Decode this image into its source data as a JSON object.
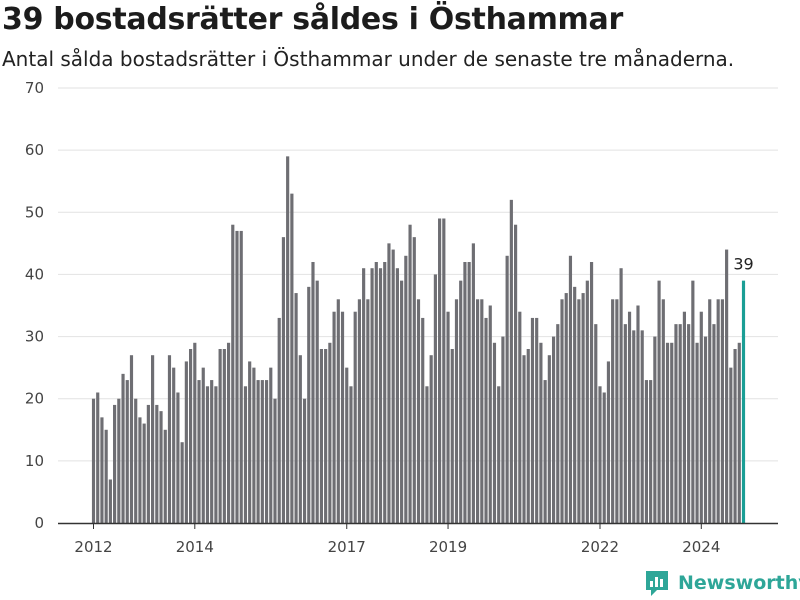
{
  "header": {
    "title": "39 bostadsrätter såldes i Östhammar",
    "subtitle": "Antal sålda bostadsrätter i Östhammar under de senaste tre månaderna."
  },
  "brand": {
    "name": "Newsworthy",
    "icon": "newsworthy-logo-icon",
    "color": "#2ea698"
  },
  "chart_data": {
    "type": "bar",
    "title": "39 bostadsrätter såldes i Östhammar",
    "subtitle": "Antal sålda bostadsrätter i Östhammar under de senaste tre månaderna.",
    "xlabel": "",
    "ylabel": "",
    "ylim": [
      0,
      70
    ],
    "yticks": [
      0,
      10,
      20,
      30,
      40,
      50,
      60,
      70
    ],
    "xticks": [
      "2012",
      "2014",
      "2017",
      "2019",
      "2022",
      "2024"
    ],
    "grid": "horizontal",
    "x_start": "2012-01",
    "x_step": "month",
    "bar_color": "#6e6e73",
    "highlight_color": "#1a9e95",
    "highlight_label": "39",
    "values": [
      20,
      21,
      17,
      15,
      7,
      19,
      20,
      24,
      23,
      27,
      20,
      17,
      16,
      19,
      27,
      19,
      18,
      15,
      27,
      25,
      21,
      13,
      26,
      28,
      29,
      23,
      25,
      22,
      23,
      22,
      28,
      28,
      29,
      48,
      47,
      47,
      22,
      26,
      25,
      23,
      23,
      23,
      25,
      20,
      33,
      46,
      59,
      53,
      37,
      27,
      20,
      38,
      42,
      39,
      28,
      28,
      29,
      34,
      36,
      34,
      25,
      22,
      34,
      36,
      41,
      36,
      41,
      42,
      41,
      42,
      45,
      44,
      41,
      39,
      43,
      48,
      46,
      36,
      33,
      22,
      27,
      40,
      49,
      49,
      34,
      28,
      36,
      39,
      42,
      42,
      45,
      36,
      36,
      33,
      35,
      29,
      22,
      30,
      43,
      52,
      48,
      34,
      27,
      28,
      33,
      33,
      29,
      23,
      27,
      30,
      32,
      36,
      37,
      43,
      38,
      36,
      37,
      39,
      42,
      32,
      22,
      21,
      26,
      36,
      36,
      41,
      32,
      34,
      31,
      35,
      31,
      23,
      23,
      30,
      39,
      36,
      29,
      29,
      32,
      32,
      34,
      32,
      39,
      29,
      34,
      30,
      36,
      32,
      36,
      36,
      44,
      25,
      28,
      29,
      39
    ]
  }
}
